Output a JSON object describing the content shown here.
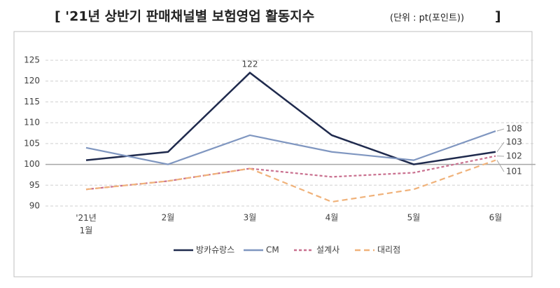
{
  "chart_data": {
    "type": "line",
    "title": "[ '21년 상반기 판매채널별 보험영업 활동지수",
    "unit": "(단위 : pt(포인트))",
    "title_close": "]",
    "categories": [
      "'21년\n1월",
      "2월",
      "3월",
      "4월",
      "5월",
      "6월"
    ],
    "series": [
      {
        "name": "방카슈랑스",
        "color": "#1f2a4d",
        "dash": "solid",
        "values": [
          101,
          103,
          122,
          107,
          100,
          103
        ],
        "value_labels": [
          null,
          null,
          "122",
          null,
          null,
          "103"
        ]
      },
      {
        "name": "CM",
        "color": "#7f96c0",
        "dash": "solid",
        "values": [
          104,
          100,
          107,
          103,
          101,
          108
        ],
        "value_labels": [
          null,
          null,
          null,
          null,
          null,
          "108"
        ]
      },
      {
        "name": "설계사",
        "color": "#c9708f",
        "dash": "short",
        "values": [
          94,
          96,
          99,
          97,
          98,
          102
        ],
        "value_labels": [
          null,
          null,
          null,
          null,
          null,
          "102"
        ]
      },
      {
        "name": "대리점",
        "color": "#f0b27a",
        "dash": "long",
        "values": [
          94,
          96,
          99,
          91,
          94,
          101
        ],
        "value_labels": [
          null,
          null,
          null,
          null,
          null,
          "101"
        ]
      }
    ],
    "ylim": [
      90,
      125
    ],
    "yticks": [
      90,
      95,
      100,
      105,
      110,
      115,
      120,
      125
    ],
    "grid": true,
    "baseline": 100
  }
}
